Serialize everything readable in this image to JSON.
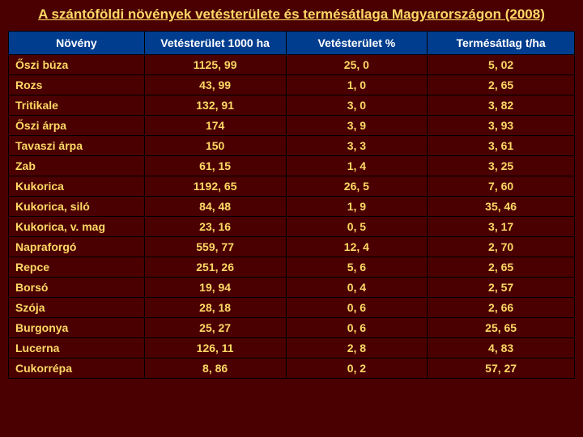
{
  "title": "A szántóföldi növények vetésterülete és termésátlaga Magyarországon (2008)",
  "table": {
    "type": "table",
    "background_color": "#4a0000",
    "header_bg": "#003d8f",
    "header_color": "#ffffff",
    "cell_color": "#ffd966",
    "border_color": "#000000",
    "font_family": "Arial",
    "header_fontsize": 14,
    "cell_fontsize": 14,
    "columns": [
      {
        "label": "Növény",
        "align": "left"
      },
      {
        "label": "Vetésterület 1000 ha",
        "align": "center"
      },
      {
        "label": "Vetésterület %",
        "align": "center"
      },
      {
        "label": "Termésátlag t/ha",
        "align": "center"
      }
    ],
    "rows": [
      [
        "Őszi búza",
        "1125, 99",
        "25, 0",
        "5, 02"
      ],
      [
        "Rozs",
        "43, 99",
        "1, 0",
        "2, 65"
      ],
      [
        "Tritikale",
        "132, 91",
        "3, 0",
        "3, 82"
      ],
      [
        "Őszi árpa",
        "174",
        "3, 9",
        "3, 93"
      ],
      [
        "Tavaszi árpa",
        "150",
        "3, 3",
        "3, 61"
      ],
      [
        "Zab",
        "61, 15",
        "1, 4",
        "3, 25"
      ],
      [
        "Kukorica",
        "1192, 65",
        "26, 5",
        "7, 60"
      ],
      [
        "Kukorica, siló",
        "84, 48",
        "1, 9",
        "35, 46"
      ],
      [
        "Kukorica, v. mag",
        "23, 16",
        "0, 5",
        "3, 17"
      ],
      [
        "Napraforgó",
        "559, 77",
        "12, 4",
        "2, 70"
      ],
      [
        "Repce",
        "251, 26",
        "5, 6",
        "2, 65"
      ],
      [
        "Borsó",
        "19, 94",
        "0, 4",
        "2, 57"
      ],
      [
        "Szója",
        "28, 18",
        "0, 6",
        "2, 66"
      ],
      [
        "Burgonya",
        "25, 27",
        "0, 6",
        "25, 65"
      ],
      [
        "Lucerna",
        "126, 11",
        "2, 8",
        "4, 83"
      ],
      [
        "Cukorrépa",
        "8, 86",
        "0, 2",
        "57, 27"
      ]
    ]
  }
}
